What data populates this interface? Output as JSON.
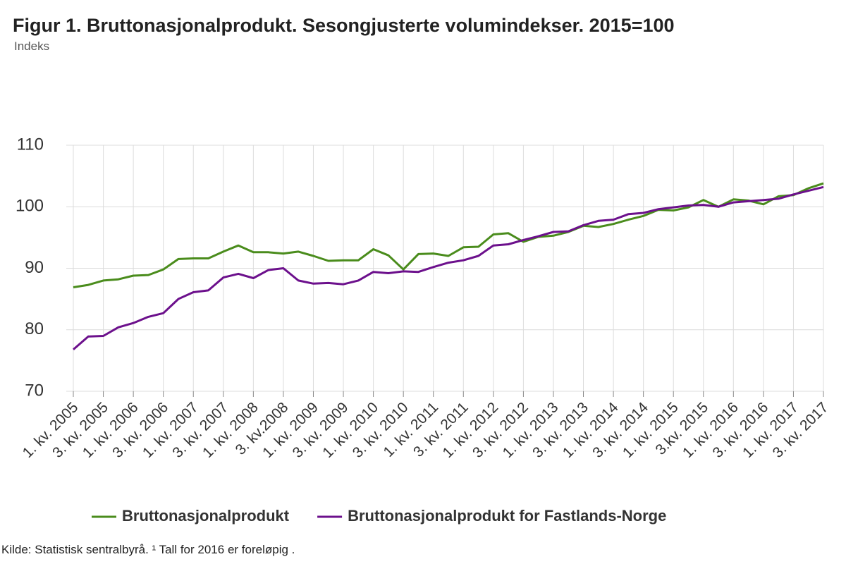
{
  "chart_data": {
    "type": "line",
    "title": "Figur 1. Bruttonasjonalprodukt. Sesongjusterte volumindekser. 2015=100",
    "subtitle": "Indeks",
    "categories": [
      "1. kv. 2005",
      null,
      "3. kv. 2005",
      null,
      "1. kv. 2006",
      null,
      "3. kv. 2006",
      null,
      "1. kv. 2007",
      null,
      "3. kv. 2007",
      null,
      "1. kv. 2008",
      null,
      "3. kv.2008",
      null,
      "1. kv. 2009",
      null,
      "3. kv. 2009",
      null,
      "1. kv. 2010",
      null,
      "3. kv. 2010",
      null,
      "1. kv. 2011",
      null,
      "3. kv. 2011",
      null,
      "1. kv. 2012",
      null,
      "3. kv. 2012",
      null,
      "1. kv. 2013",
      null,
      "3. kv. 2013",
      null,
      "1. kv. 2014",
      null,
      "3. kv. 2014",
      null,
      "1. kv. 2015",
      null,
      "3.kv. 2015",
      null,
      "1. kv. 2016",
      null,
      "3. kv. 2016",
      null,
      "1. kv. 2017",
      null,
      "3. kv. 2017"
    ],
    "series": [
      {
        "name": "Bruttonasjonalprodukt",
        "color": "#4a8c1c",
        "values": [
          86.9,
          87.3,
          88.0,
          88.2,
          88.8,
          88.9,
          89.8,
          91.5,
          91.6,
          91.6,
          92.7,
          93.7,
          92.6,
          92.6,
          92.4,
          92.7,
          92.0,
          91.2,
          91.3,
          91.3,
          93.1,
          92.1,
          89.8,
          92.3,
          92.4,
          92.0,
          93.4,
          93.5,
          95.5,
          95.7,
          94.3,
          95.1,
          95.3,
          95.9,
          96.9,
          96.7,
          97.2,
          97.9,
          98.5,
          99.5,
          99.4,
          99.9,
          101.1,
          100.0,
          101.2,
          101.0,
          100.4,
          101.7,
          101.9,
          103.0,
          103.8
        ]
      },
      {
        "name": "Bruttonasjonalprodukt for Fastlands-Norge",
        "color": "#6c108c",
        "values": [
          76.8,
          78.9,
          79.0,
          80.4,
          81.1,
          82.1,
          82.7,
          85.0,
          86.1,
          86.4,
          88.5,
          89.1,
          88.4,
          89.7,
          90.0,
          88.0,
          87.5,
          87.6,
          87.4,
          88.0,
          89.4,
          89.2,
          89.5,
          89.4,
          90.2,
          90.9,
          91.3,
          92.0,
          93.7,
          93.9,
          94.6,
          95.2,
          95.9,
          96.0,
          97.0,
          97.7,
          97.9,
          98.8,
          99.0,
          99.6,
          99.9,
          100.2,
          100.3,
          100.0,
          100.7,
          100.9,
          101.1,
          101.3,
          102.0,
          102.6,
          103.2
        ]
      }
    ],
    "ylim": [
      70,
      110
    ],
    "yticks": [
      70,
      80,
      90,
      100,
      110
    ],
    "grid": true,
    "legend": "bottom",
    "source": "Kilde: Statistisk sentralbyrå. ¹ Tall for 2016 er foreløpig ."
  }
}
